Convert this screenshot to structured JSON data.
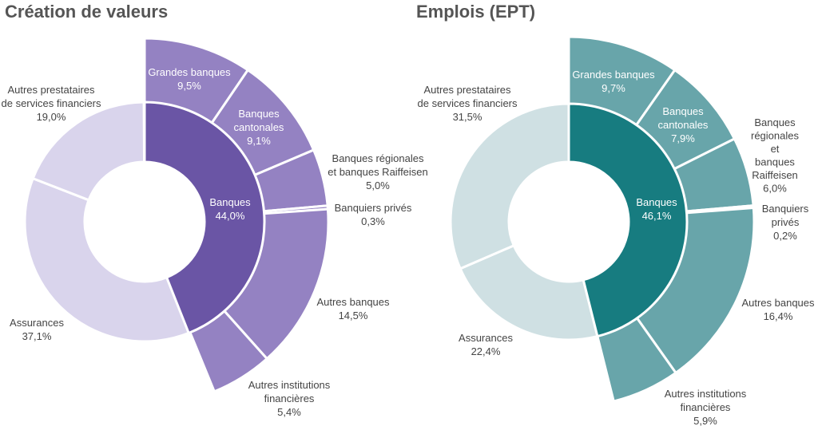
{
  "chart_data": [
    {
      "type": "pie",
      "title": "Création de valeurs",
      "inner": {
        "label": "Banques",
        "value_label": "44,0%",
        "value": 44.0,
        "color": "#6a55a5"
      },
      "segments": [
        {
          "label": "Grandes banques",
          "value_label": "9,5%",
          "value": 9.5,
          "level": "outer",
          "color": "#9482c2"
        },
        {
          "label": "Banques cantonales",
          "value_label": "9,1%",
          "value": 9.1,
          "level": "outer",
          "color": "#9482c2"
        },
        {
          "label": "Banques régionales et banques Raiffeisen",
          "value_label": "5,0%",
          "value": 5.0,
          "level": "outer",
          "color": "#9482c2"
        },
        {
          "label": "Banquiers privés",
          "value_label": "0,3%",
          "value": 0.3,
          "level": "outer",
          "color": "#9482c2"
        },
        {
          "label": "Autres banques",
          "value_label": "14,5%",
          "value": 14.5,
          "level": "outer",
          "color": "#9482c2"
        },
        {
          "label": "Autres institutions financières",
          "value_label": "5,4%",
          "value": 5.4,
          "level": "outer",
          "color": "#9482c2"
        },
        {
          "label": "Assurances",
          "value_label": "37,1%",
          "value": 37.1,
          "level": "base",
          "color": "#d9d4ec"
        },
        {
          "label": "Autres prestataires de services financiers",
          "value_label": "19,0%",
          "value": 19.0,
          "level": "base",
          "color": "#d9d4ec"
        }
      ]
    },
    {
      "type": "pie",
      "title": "Emplois (EPT)",
      "inner": {
        "label": "Banques",
        "value_label": "46,1%",
        "value": 46.1,
        "color": "#177c80"
      },
      "segments": [
        {
          "label": "Grandes banques",
          "value_label": "9,7%",
          "value": 9.7,
          "level": "outer",
          "color": "#68a5aa"
        },
        {
          "label": "Banques cantonales",
          "value_label": "7,9%",
          "value": 7.9,
          "level": "outer",
          "color": "#68a5aa"
        },
        {
          "label": "Banques régionales et banques Raiffeisen",
          "value_label": "6,0%",
          "value": 6.0,
          "level": "outer",
          "color": "#68a5aa"
        },
        {
          "label": "Banquiers privés",
          "value_label": "0,2%",
          "value": 0.2,
          "level": "outer",
          "color": "#68a5aa"
        },
        {
          "label": "Autres banques",
          "value_label": "16,4%",
          "value": 16.4,
          "level": "outer",
          "color": "#68a5aa"
        },
        {
          "label": "Autres institutions financières",
          "value_label": "5,9%",
          "value": 5.9,
          "level": "outer",
          "color": "#68a5aa"
        },
        {
          "label": "Assurances",
          "value_label": "22,4%",
          "value": 22.4,
          "level": "base",
          "color": "#cfe0e3"
        },
        {
          "label": "Autres prestataires de services financiers",
          "value_label": "31,5%",
          "value": 31.5,
          "level": "base",
          "color": "#cfe0e3"
        }
      ]
    }
  ]
}
